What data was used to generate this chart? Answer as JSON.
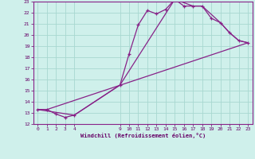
{
  "xlabel": "Windchill (Refroidissement éolien,°C)",
  "bg_color": "#cff0eb",
  "grid_color": "#a8d8d0",
  "line_color": "#882288",
  "marker_color": "#882288",
  "line1_x": [
    0,
    1,
    2,
    3,
    4,
    9,
    10,
    11,
    12,
    13,
    14,
    15,
    16,
    17,
    18,
    19,
    20,
    21,
    22,
    23
  ],
  "line1_y": [
    13.3,
    13.3,
    12.9,
    12.6,
    12.8,
    15.5,
    18.3,
    20.9,
    22.2,
    21.9,
    22.3,
    23.2,
    22.6,
    22.6,
    22.6,
    21.5,
    21.1,
    20.2,
    19.5,
    19.3
  ],
  "line2_x": [
    0,
    4,
    9,
    15,
    17,
    18,
    20,
    21,
    22,
    23
  ],
  "line2_y": [
    13.3,
    12.8,
    15.5,
    23.2,
    22.6,
    22.6,
    21.1,
    20.2,
    19.5,
    19.3
  ],
  "line3_x": [
    0,
    1,
    23
  ],
  "line3_y": [
    13.3,
    13.3,
    19.3
  ],
  "xlim": [
    -0.5,
    23.5
  ],
  "ylim": [
    12,
    23
  ],
  "xticks": [
    0,
    1,
    2,
    3,
    4,
    9,
    10,
    11,
    12,
    13,
    14,
    15,
    16,
    17,
    18,
    19,
    20,
    21,
    22,
    23
  ],
  "yticks": [
    12,
    13,
    14,
    15,
    16,
    17,
    18,
    19,
    20,
    21,
    22,
    23
  ]
}
